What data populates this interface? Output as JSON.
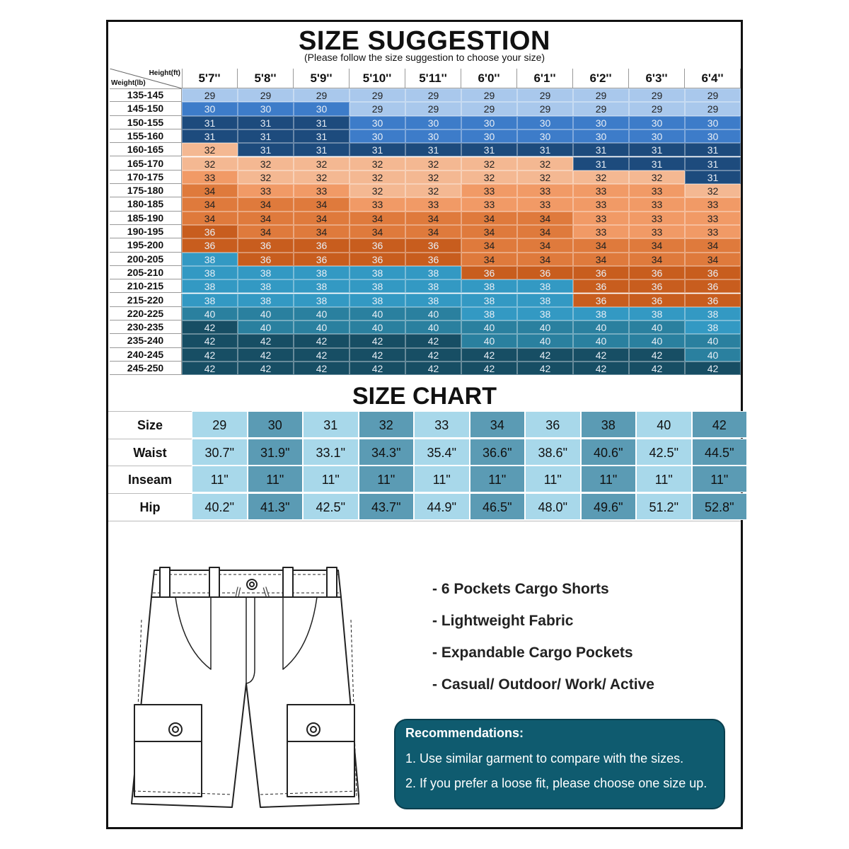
{
  "suggestion": {
    "title": "SIZE SUGGESTION",
    "subtitle": "(Please follow the size suggestion to choose your size)",
    "corner_height_label": "Height(ft)",
    "corner_weight_label": "Weight(lb)",
    "heights": [
      "5'7''",
      "5'8''",
      "5'9''",
      "5'10''",
      "5'11''",
      "6'0''",
      "6'1''",
      "6'2''",
      "6'3''",
      "6'4''"
    ],
    "weights": [
      "135-145",
      "145-150",
      "150-155",
      "155-160",
      "160-165",
      "165-170",
      "170-175",
      "175-180",
      "180-185",
      "185-190",
      "190-195",
      "195-200",
      "200-205",
      "205-210",
      "210-215",
      "215-220",
      "220-225",
      "230-235",
      "235-240",
      "240-245",
      "245-250"
    ],
    "sizes": [
      [
        29,
        29,
        29,
        29,
        29,
        29,
        29,
        29,
        29,
        29
      ],
      [
        30,
        30,
        30,
        29,
        29,
        29,
        29,
        29,
        29,
        29
      ],
      [
        31,
        31,
        31,
        30,
        30,
        30,
        30,
        30,
        30,
        30
      ],
      [
        31,
        31,
        31,
        30,
        30,
        30,
        30,
        30,
        30,
        30
      ],
      [
        32,
        31,
        31,
        31,
        31,
        31,
        31,
        31,
        31,
        31
      ],
      [
        32,
        32,
        32,
        32,
        32,
        32,
        32,
        31,
        31,
        31
      ],
      [
        33,
        32,
        32,
        32,
        32,
        32,
        32,
        32,
        32,
        31
      ],
      [
        34,
        33,
        33,
        32,
        32,
        33,
        33,
        33,
        33,
        32
      ],
      [
        34,
        34,
        34,
        33,
        33,
        33,
        33,
        33,
        33,
        33
      ],
      [
        34,
        34,
        34,
        34,
        34,
        34,
        34,
        33,
        33,
        33
      ],
      [
        36,
        34,
        34,
        34,
        34,
        34,
        34,
        33,
        33,
        33
      ],
      [
        36,
        36,
        36,
        36,
        36,
        34,
        34,
        34,
        34,
        34
      ],
      [
        38,
        36,
        36,
        36,
        36,
        34,
        34,
        34,
        34,
        34
      ],
      [
        38,
        38,
        38,
        38,
        38,
        36,
        36,
        36,
        36,
        36
      ],
      [
        38,
        38,
        38,
        38,
        38,
        38,
        38,
        36,
        36,
        36
      ],
      [
        38,
        38,
        38,
        38,
        38,
        38,
        38,
        36,
        36,
        36
      ],
      [
        40,
        40,
        40,
        40,
        40,
        38,
        38,
        38,
        38,
        38
      ],
      [
        42,
        40,
        40,
        40,
        40,
        40,
        40,
        40,
        40,
        38
      ],
      [
        42,
        42,
        42,
        42,
        42,
        40,
        40,
        40,
        40,
        40
      ],
      [
        42,
        42,
        42,
        42,
        42,
        42,
        42,
        42,
        42,
        40
      ],
      [
        42,
        42,
        42,
        42,
        42,
        42,
        42,
        42,
        42,
        42
      ]
    ],
    "size_colors": {
      "29": "#a9c8ec",
      "30": "#3d7cc9",
      "31": "#1d4b7d",
      "32": "#f4b892",
      "33": "#f19a66",
      "34": "#df7a3c",
      "36": "#c85d1e",
      "38": "#3399c3",
      "40": "#2a809f",
      "42": "#174e64"
    },
    "light_text_sizes": [
      "30",
      "31",
      "36",
      "38",
      "40",
      "42"
    ]
  },
  "size_chart": {
    "title": "SIZE CHART",
    "row_labels": [
      "Size",
      "Waist",
      "Inseam",
      "Hip"
    ],
    "sizes": [
      "29",
      "30",
      "31",
      "32",
      "33",
      "34",
      "36",
      "38",
      "40",
      "42"
    ],
    "waist": [
      "30.7\"",
      "31.9\"",
      "33.1\"",
      "34.3\"",
      "35.4\"",
      "36.6\"",
      "38.6\"",
      "40.6\"",
      "42.5\"",
      "44.5\""
    ],
    "inseam": [
      "11\"",
      "11\"",
      "11\"",
      "11\"",
      "11\"",
      "11\"",
      "11\"",
      "11\"",
      "11\"",
      "11\""
    ],
    "hip": [
      "40.2\"",
      "41.3\"",
      "42.5\"",
      "43.7\"",
      "44.9\"",
      "46.5\"",
      "48.0\"",
      "49.6\"",
      "51.2\"",
      "52.8\""
    ],
    "color_light": "#a8d8ea",
    "color_dark": "#5b9bb4"
  },
  "features": [
    "- 6 Pockets Cargo Shorts",
    "- Lightweight Fabric",
    "- Expandable Cargo Pockets",
    "- Casual/ Outdoor/ Work/ Active"
  ],
  "recommendations": {
    "title": "Recommendations:",
    "items": [
      "1. Use similar garment to compare with the sizes.",
      "2. If you prefer a loose fit, please choose one size up."
    ],
    "bg_color": "#0f5b6f"
  }
}
